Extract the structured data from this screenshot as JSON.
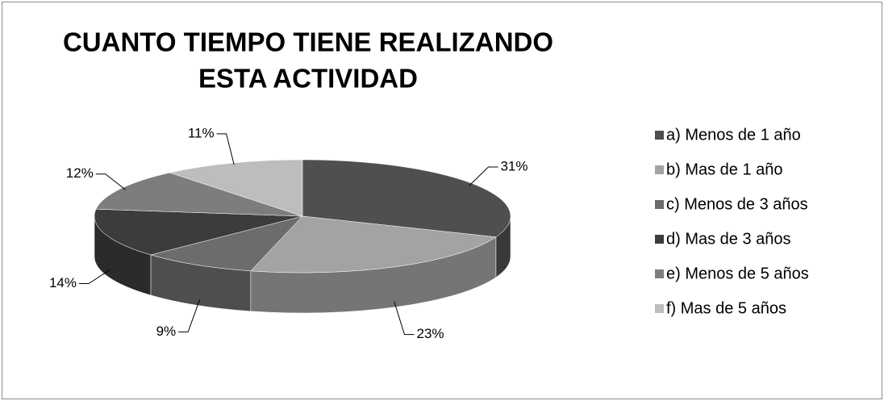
{
  "chart_data": {
    "type": "pie",
    "title": [
      "CUANTO TIEMPO TIENE REALIZANDO",
      "ESTA ACTIVIDAD"
    ],
    "categories": [
      "a) Menos de 1 año",
      "b) Mas de 1 año",
      "c) Menos de 3 años",
      "d) Mas de 3 años",
      "e) Menos de 5 años",
      "f) Mas de 5 años"
    ],
    "values": [
      31,
      23,
      9,
      14,
      12,
      11
    ],
    "value_labels": [
      "31%",
      "23%",
      "9%",
      "14%",
      "12%",
      "11%"
    ],
    "colors": [
      "#4f4f4f",
      "#a3a3a3",
      "#6c6c6c",
      "#3c3c3c",
      "#7d7d7d",
      "#bdbdbd"
    ],
    "legend": "right"
  }
}
